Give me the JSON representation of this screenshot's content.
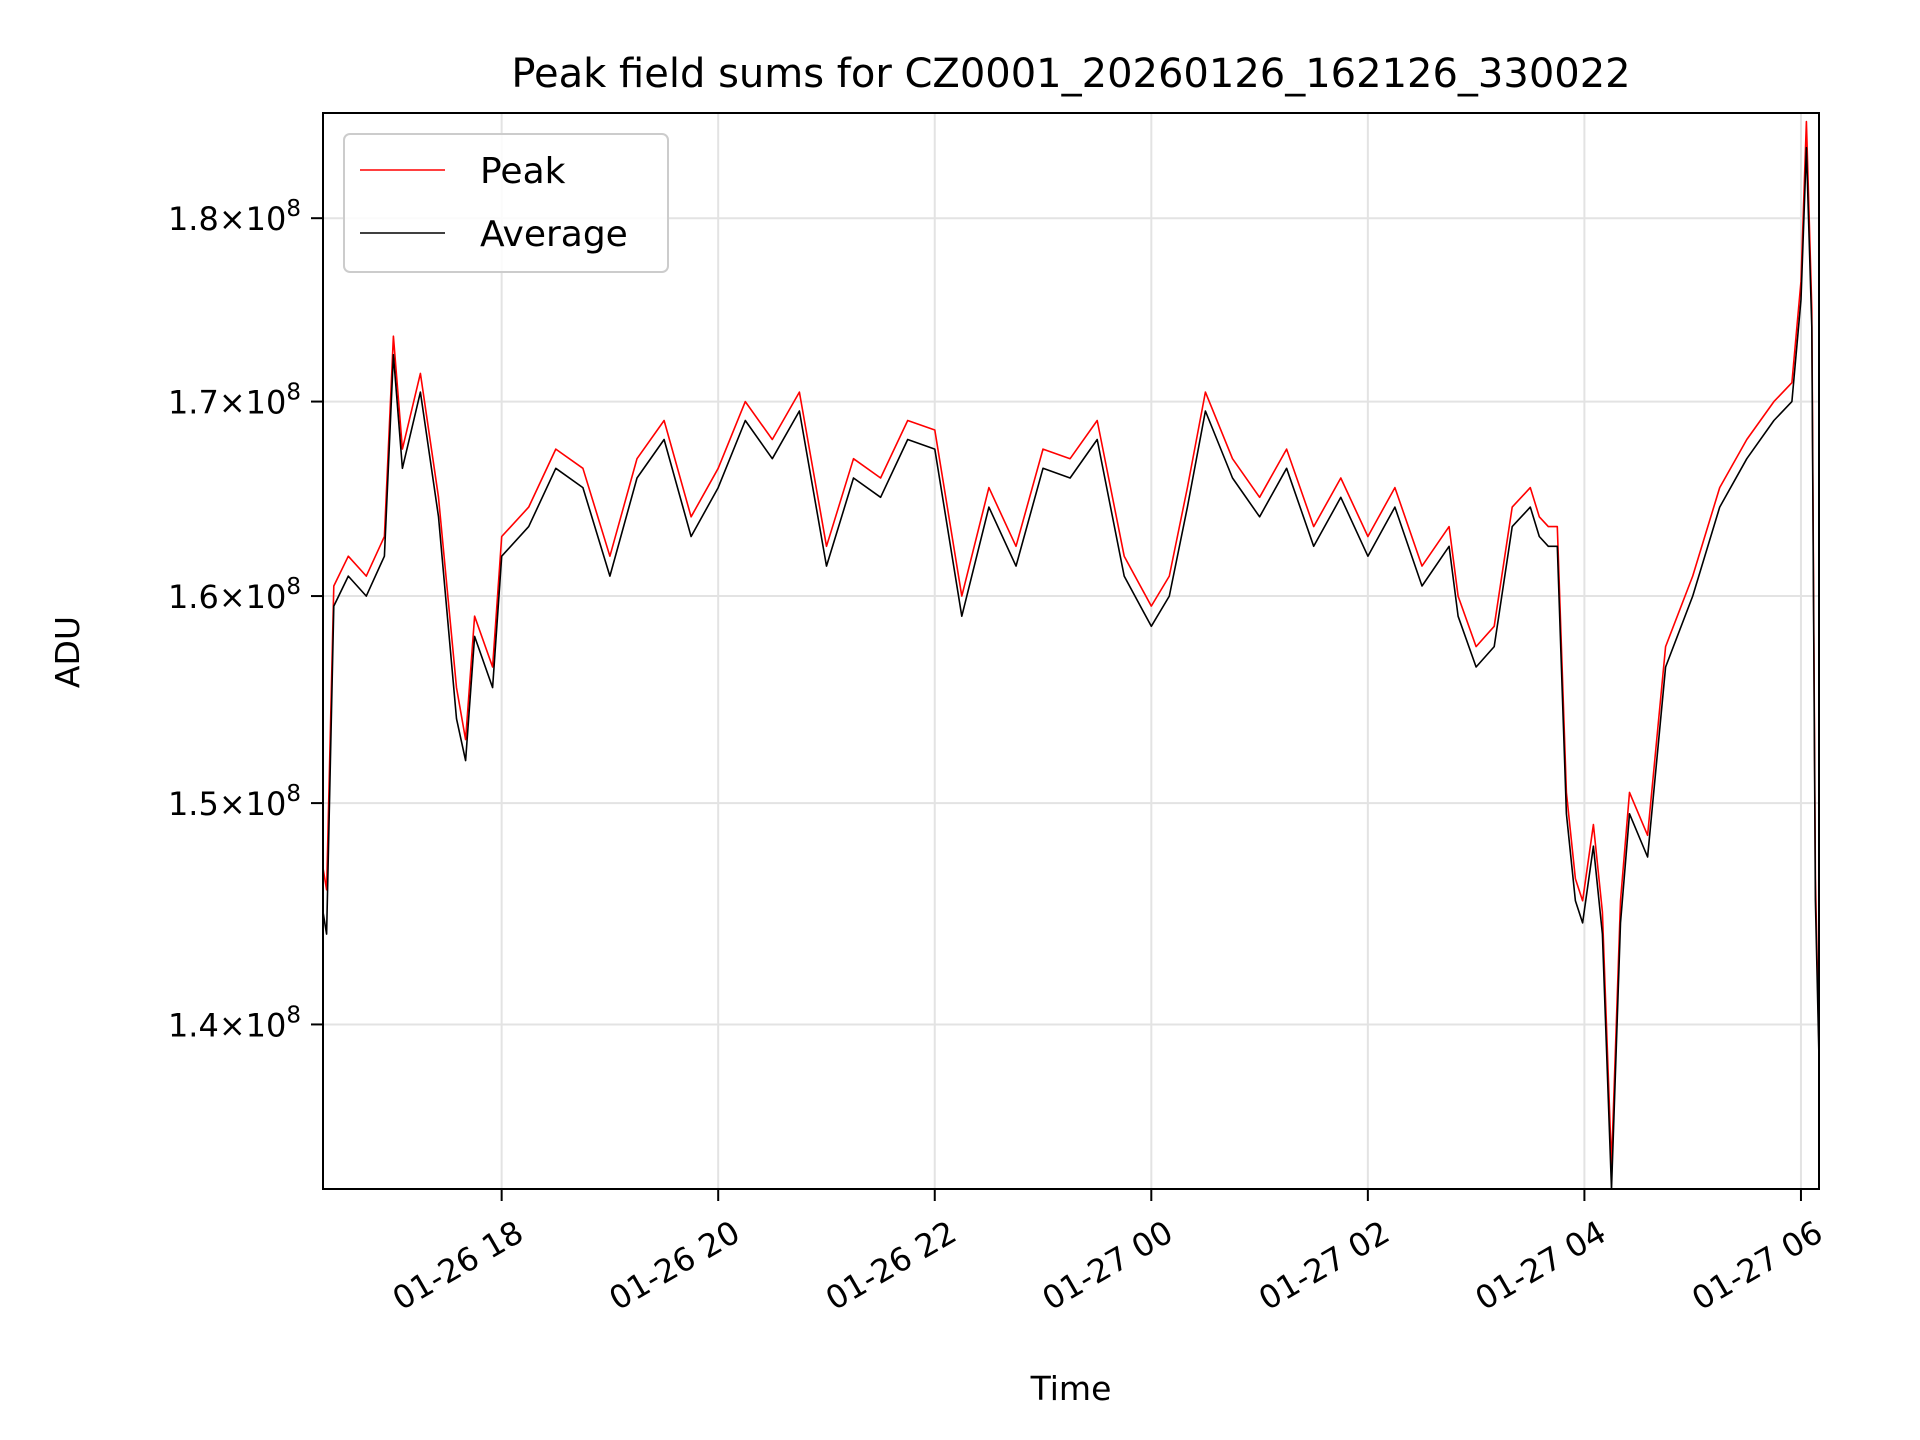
{
  "chart_data": {
    "type": "line",
    "title": "Peak field sums for CZ0001_20260126_162126_330022",
    "xlabel": "Time",
    "ylabel": "ADU",
    "y_scale": "log",
    "x_type": "datetime",
    "xlim": [
      "2026-01-26T16:21:00",
      "2026-01-27T06:10:00"
    ],
    "ylim": [
      133000000,
      186000000
    ],
    "grid": true,
    "legend_position": "top-left",
    "x_ticks": [
      {
        "value": "2026-01-26T18:00:00",
        "label": "01-26 18"
      },
      {
        "value": "2026-01-26T20:00:00",
        "label": "01-26 20"
      },
      {
        "value": "2026-01-26T22:00:00",
        "label": "01-26 22"
      },
      {
        "value": "2026-01-27T00:00:00",
        "label": "01-27 00"
      },
      {
        "value": "2026-01-27T02:00:00",
        "label": "01-27 02"
      },
      {
        "value": "2026-01-27T04:00:00",
        "label": "01-27 04"
      },
      {
        "value": "2026-01-27T06:00:00",
        "label": "01-27 06"
      }
    ],
    "y_ticks": [
      {
        "value": 140000000,
        "base": "1.4",
        "exp": "8"
      },
      {
        "value": 150000000,
        "base": "1.5",
        "exp": "8"
      },
      {
        "value": 160000000,
        "base": "1.6",
        "exp": "8"
      },
      {
        "value": 170000000,
        "base": "1.7",
        "exp": "8"
      },
      {
        "value": 180000000,
        "base": "1.8",
        "exp": "8"
      }
    ],
    "series": [
      {
        "name": "Peak",
        "color": "#ff0000",
        "role": "peak"
      },
      {
        "name": "Average",
        "color": "#000000",
        "role": "average"
      }
    ],
    "x": [
      "2026-01-26T16:21:00",
      "2026-01-26T16:23:00",
      "2026-01-26T16:27:00",
      "2026-01-26T16:35:00",
      "2026-01-26T16:45:00",
      "2026-01-26T16:55:00",
      "2026-01-26T17:00:00",
      "2026-01-26T17:05:00",
      "2026-01-26T17:15:00",
      "2026-01-26T17:25:00",
      "2026-01-26T17:35:00",
      "2026-01-26T17:40:00",
      "2026-01-26T17:45:00",
      "2026-01-26T17:55:00",
      "2026-01-26T18:00:00",
      "2026-01-26T18:15:00",
      "2026-01-26T18:30:00",
      "2026-01-26T18:45:00",
      "2026-01-26T19:00:00",
      "2026-01-26T19:15:00",
      "2026-01-26T19:30:00",
      "2026-01-26T19:45:00",
      "2026-01-26T20:00:00",
      "2026-01-26T20:15:00",
      "2026-01-26T20:30:00",
      "2026-01-26T20:45:00",
      "2026-01-26T21:00:00",
      "2026-01-26T21:15:00",
      "2026-01-26T21:30:00",
      "2026-01-26T21:45:00",
      "2026-01-26T22:00:00",
      "2026-01-26T22:15:00",
      "2026-01-26T22:30:00",
      "2026-01-26T22:45:00",
      "2026-01-26T23:00:00",
      "2026-01-26T23:15:00",
      "2026-01-26T23:30:00",
      "2026-01-26T23:45:00",
      "2026-01-27T00:00:00",
      "2026-01-27T00:10:00",
      "2026-01-27T00:20:00",
      "2026-01-27T00:30:00",
      "2026-01-27T00:45:00",
      "2026-01-27T01:00:00",
      "2026-01-27T01:15:00",
      "2026-01-27T01:30:00",
      "2026-01-27T01:45:00",
      "2026-01-27T02:00:00",
      "2026-01-27T02:15:00",
      "2026-01-27T02:30:00",
      "2026-01-27T02:45:00",
      "2026-01-27T02:50:00",
      "2026-01-27T03:00:00",
      "2026-01-27T03:10:00",
      "2026-01-27T03:20:00",
      "2026-01-27T03:30:00",
      "2026-01-27T03:35:00",
      "2026-01-27T03:40:00",
      "2026-01-27T03:45:00",
      "2026-01-27T03:50:00",
      "2026-01-27T03:55:00",
      "2026-01-27T03:59:00",
      "2026-01-27T04:05:00",
      "2026-01-27T04:10:00",
      "2026-01-27T04:15:00",
      "2026-01-27T04:20:00",
      "2026-01-27T04:25:00",
      "2026-01-27T04:35:00",
      "2026-01-27T04:45:00",
      "2026-01-27T05:00:00",
      "2026-01-27T05:15:00",
      "2026-01-27T05:30:00",
      "2026-01-27T05:45:00",
      "2026-01-27T05:55:00",
      "2026-01-27T06:00:00",
      "2026-01-27T06:03:00",
      "2026-01-27T06:06:00",
      "2026-01-27T06:08:00",
      "2026-01-27T06:10:00"
    ],
    "peak": [
      147000000,
      146000000,
      160500000,
      162000000,
      161000000,
      163000000,
      173500000,
      167500000,
      171500000,
      165000000,
      155500000,
      153000000,
      159000000,
      156500000,
      163000000,
      164500000,
      167500000,
      166500000,
      162000000,
      167000000,
      169000000,
      164000000,
      166500000,
      170000000,
      168000000,
      170500000,
      162500000,
      167000000,
      166000000,
      169000000,
      168500000,
      160000000,
      165500000,
      162500000,
      167500000,
      167000000,
      169000000,
      162000000,
      159500000,
      161000000,
      165500000,
      170500000,
      167000000,
      165000000,
      167500000,
      163500000,
      166000000,
      163000000,
      165500000,
      161500000,
      163500000,
      160000000,
      157500000,
      158500000,
      164500000,
      165500000,
      164000000,
      163500000,
      163500000,
      150500000,
      146500000,
      145500000,
      149000000,
      145000000,
      134000000,
      145500000,
      150500000,
      148500000,
      157500000,
      161000000,
      165500000,
      168000000,
      170000000,
      171000000,
      176500000,
      185500000,
      175000000,
      146500000,
      139000000
    ],
    "average": [
      145000000,
      144000000,
      159500000,
      161000000,
      160000000,
      162000000,
      172500000,
      166500000,
      170500000,
      164000000,
      154000000,
      152000000,
      158000000,
      155500000,
      162000000,
      163500000,
      166500000,
      165500000,
      161000000,
      166000000,
      168000000,
      163000000,
      165500000,
      169000000,
      167000000,
      169500000,
      161500000,
      166000000,
      165000000,
      168000000,
      167500000,
      159000000,
      164500000,
      161500000,
      166500000,
      166000000,
      168000000,
      161000000,
      158500000,
      160000000,
      164500000,
      169500000,
      166000000,
      164000000,
      166500000,
      162500000,
      165000000,
      162000000,
      164500000,
      160500000,
      162500000,
      159000000,
      156500000,
      157500000,
      163500000,
      164500000,
      163000000,
      162500000,
      162500000,
      149500000,
      145500000,
      144500000,
      148000000,
      144000000,
      133000000,
      144500000,
      149500000,
      147500000,
      156500000,
      160000000,
      164500000,
      167000000,
      169000000,
      170000000,
      175500000,
      184000000,
      174000000,
      145500000,
      138500000
    ]
  }
}
